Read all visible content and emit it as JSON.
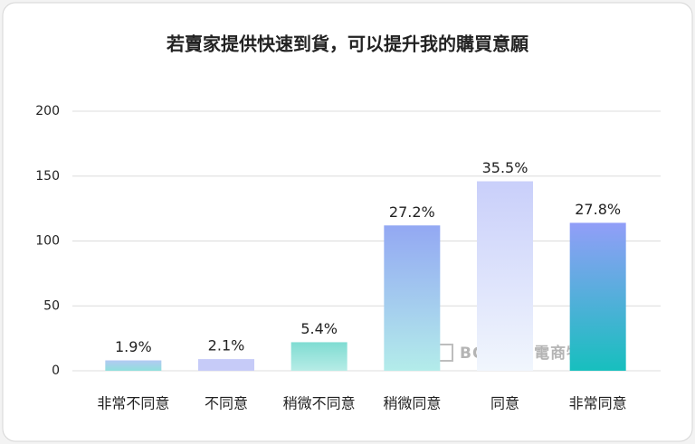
{
  "chart_data": {
    "type": "bar",
    "title": "若賣家提供快速到貨，可以提升我的購買意願",
    "categories": [
      "非常不同意",
      "不同意",
      "稍微不同意",
      "稍微同意",
      "同意",
      "非常同意"
    ],
    "values": [
      8,
      9,
      22,
      112,
      146,
      114
    ],
    "percent_labels": [
      "1.9%",
      "2.1%",
      "5.4%",
      "27.2%",
      "35.5%",
      "27.8%"
    ],
    "colors": [
      [
        "#b3c9f3",
        "#8fe0dc"
      ],
      [
        "#c6cbf8",
        "#c6cbf8"
      ],
      [
        "#7fdcd2",
        "#b6ece6"
      ],
      [
        "#93a8f3",
        "#b3ecea"
      ],
      [
        "#c9cffa",
        "#f1f6fd"
      ],
      [
        "#929ef8",
        "#17bfbe"
      ]
    ],
    "ylim": [
      0,
      200
    ],
    "yticks": [
      0,
      50,
      100,
      150,
      200
    ],
    "grid": true,
    "watermark": "BOXFUL電商物流"
  }
}
